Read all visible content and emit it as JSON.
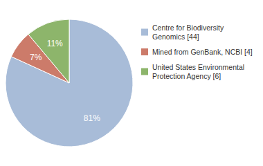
{
  "chart_data": {
    "type": "pie",
    "categories": [
      "Centre for Biodiversity\nGenomics [44]",
      "Mined from GenBank, NCBI [4]",
      "United States Environmental\nProtection Agency [6]"
    ],
    "values": [
      81,
      7,
      11
    ],
    "value_labels": [
      "81%",
      "7%",
      "11%"
    ],
    "colors": [
      "#a8bcd8",
      "#cc7b6a",
      "#8db56b"
    ],
    "data_labels": true,
    "legend": "right"
  }
}
